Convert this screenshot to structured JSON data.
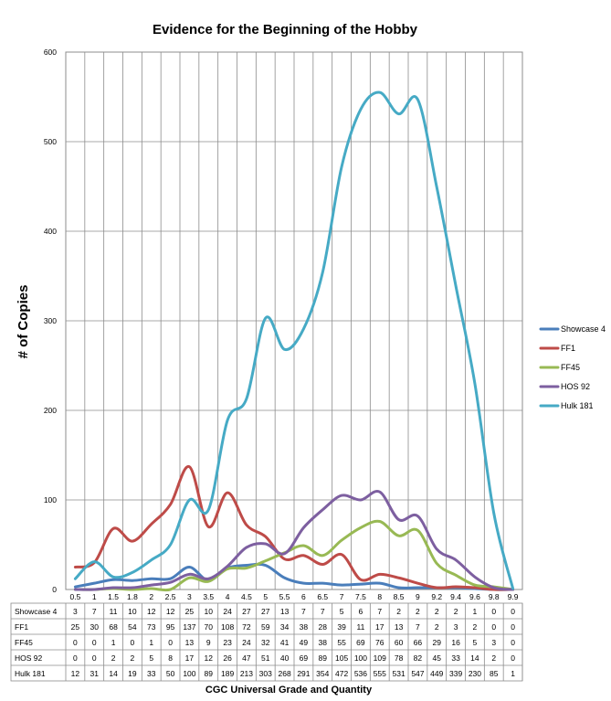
{
  "chart_data": {
    "type": "line",
    "title": "Evidence for the Beginning of the Hobby",
    "xlabel": "CGC Universal  Grade and Quantity",
    "ylabel": "# of Copies",
    "ylim": [
      0,
      600
    ],
    "yticks": [
      0,
      100,
      200,
      300,
      400,
      500,
      600
    ],
    "grid": true,
    "legend": "right",
    "categories": [
      "0.5",
      "1",
      "1.5",
      "1.8",
      "2",
      "2.5",
      "3",
      "3.5",
      "4",
      "4.5",
      "5",
      "5.5",
      "6",
      "6.5",
      "7",
      "7.5",
      "8",
      "8.5",
      "9",
      "9.2",
      "9.4",
      "9.6",
      "9.8",
      "9.9"
    ],
    "series": [
      {
        "name": "Showcase 4",
        "color": "#4a7ebb",
        "values": [
          3,
          7,
          11,
          10,
          12,
          12,
          25,
          10,
          24,
          27,
          27,
          13,
          7,
          7,
          5,
          6,
          7,
          2,
          2,
          2,
          2,
          1,
          0,
          0
        ]
      },
      {
        "name": "FF1",
        "color": "#be4b48",
        "values": [
          25,
          30,
          68,
          54,
          73,
          95,
          137,
          70,
          108,
          72,
          59,
          34,
          38,
          28,
          39,
          11,
          17,
          13,
          7,
          2,
          3,
          2,
          0,
          0
        ]
      },
      {
        "name": "FF45",
        "color": "#98b954",
        "values": [
          0,
          0,
          1,
          0,
          1,
          0,
          13,
          9,
          23,
          24,
          32,
          41,
          49,
          38,
          55,
          69,
          76,
          60,
          66,
          29,
          16,
          5,
          3,
          0
        ]
      },
      {
        "name": "HOS 92",
        "color": "#7d5fa0",
        "values": [
          0,
          0,
          2,
          2,
          5,
          8,
          17,
          12,
          26,
          47,
          51,
          40,
          69,
          89,
          105,
          100,
          109,
          78,
          82,
          45,
          33,
          14,
          2,
          0
        ]
      },
      {
        "name": "Hulk 181",
        "color": "#46aac5",
        "values": [
          12,
          31,
          14,
          19,
          33,
          50,
          100,
          89,
          189,
          213,
          303,
          268,
          291,
          354,
          472,
          536,
          555,
          531,
          547,
          449,
          339,
          230,
          85,
          1
        ]
      }
    ]
  }
}
